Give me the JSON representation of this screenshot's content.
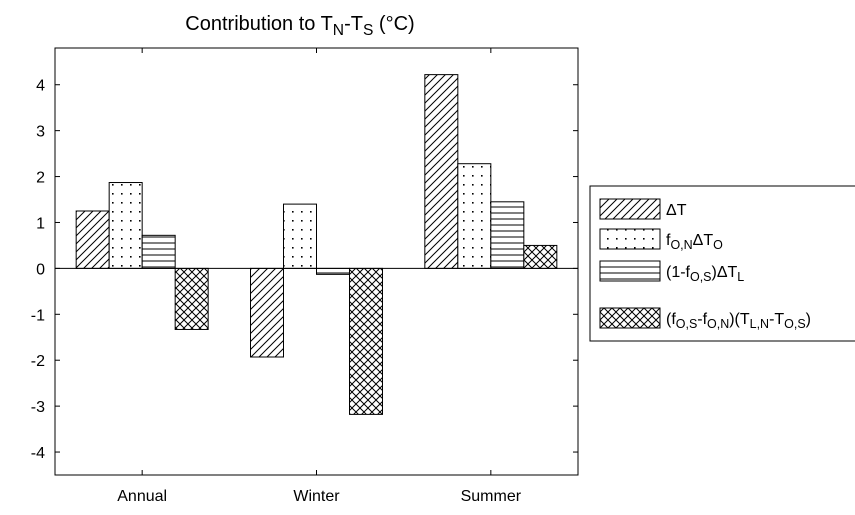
{
  "chart_data": {
    "type": "bar",
    "title": [
      {
        "text": "Contribution to T"
      },
      {
        "text": "N",
        "sub": true
      },
      {
        "text": "-T"
      },
      {
        "text": "S",
        "sub": true
      },
      {
        "text": " (°C)"
      }
    ],
    "categories": [
      "Annual",
      "Winter",
      "Summer"
    ],
    "series": [
      {
        "name": [
          {
            "text": "ΔT"
          }
        ],
        "pattern": "diagonal",
        "color": "#000000",
        "values": [
          1.25,
          -1.93,
          4.22
        ]
      },
      {
        "name": [
          {
            "text": "f"
          },
          {
            "text": "O,N",
            "sub": true
          },
          {
            "text": "ΔT"
          },
          {
            "text": "O",
            "sub": true
          }
        ],
        "pattern": "dots",
        "color": "#000000",
        "values": [
          1.87,
          1.4,
          2.28
        ]
      },
      {
        "name": [
          {
            "text": "(1-f"
          },
          {
            "text": "O,S",
            "sub": true
          },
          {
            "text": ")ΔT"
          },
          {
            "text": "L",
            "sub": true
          }
        ],
        "pattern": "horizontal",
        "color": "#000000",
        "values": [
          0.72,
          -0.13,
          1.45
        ]
      },
      {
        "name": [
          {
            "text": "(f"
          },
          {
            "text": "O,S",
            "sub": true
          },
          {
            "text": "-f"
          },
          {
            "text": "O,N",
            "sub": true
          },
          {
            "text": ")(T"
          },
          {
            "text": "L,N",
            "sub": true
          },
          {
            "text": "-T"
          },
          {
            "text": "O,S",
            "sub": true
          },
          {
            "text": ")"
          }
        ],
        "pattern": "crosshatch",
        "color": "#000000",
        "values": [
          -1.33,
          -3.18,
          0.5
        ]
      }
    ],
    "ylim": [
      -4.5,
      4.8
    ],
    "yticks": [
      -4,
      -3,
      -2,
      -1,
      0,
      1,
      2,
      3,
      4
    ],
    "grid": false,
    "legend": "right"
  }
}
